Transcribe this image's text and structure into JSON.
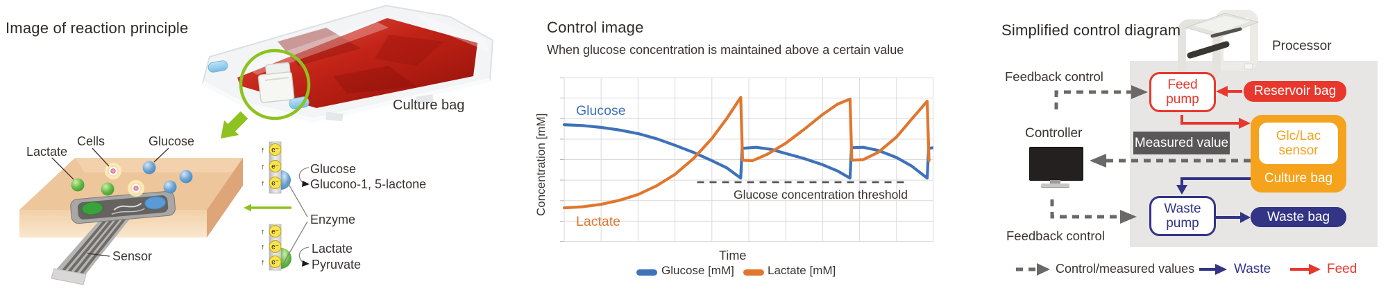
{
  "colors": {
    "feed_red": "#e8382d",
    "waste_navy": "#333486",
    "sensor_orange": "#f5a21d",
    "measured_gray": "#595757",
    "panel_gray": "#e7e6e4",
    "accent_green": "#8ec21f",
    "chart_blue": "#3e72b9",
    "chart_orange": "#e0772f",
    "text_dark": "#3a3331"
  },
  "panel1": {
    "title": "Image of reaction principle",
    "culture_bag_label": "Culture bag",
    "labels": {
      "lactate": "Lactate",
      "cells": "Cells",
      "glucose": "Glucose",
      "sensor": "Sensor"
    },
    "enzyme": {
      "electron": "e⁻",
      "up_arrow": "↑",
      "glucose_substrate": "Glucose",
      "glucose_product": "Glucono-1, 5-lactone",
      "enzyme_label": "Enzyme",
      "lactate_substrate": "Lactate",
      "lactate_product": "Pyruvate"
    }
  },
  "panel2": {
    "title": "Control image",
    "subtitle": "When glucose concentration is maintained above a certain value",
    "ylabel": "Concentration [mM]",
    "xlabel": "Time",
    "glucose_curve_label": "Glucose",
    "lactate_curve_label": "Lactate",
    "threshold_label": "Glucose concentration threshold",
    "legend": [
      {
        "label": "Glucose [mM]",
        "color": "#3e72b9"
      },
      {
        "label": "Lactate [mM]",
        "color": "#e0772f"
      }
    ]
  },
  "chart_data": {
    "type": "line",
    "title": "Control image",
    "xlabel": "Time",
    "ylabel": "Concentration [mM]",
    "xlim": [
      0,
      10
    ],
    "ylim": [
      0,
      8
    ],
    "grid": true,
    "tick_labels": "none (conceptual sketch, unlabeled axes)",
    "legend_position": "bottom",
    "threshold": {
      "label": "Glucose concentration threshold",
      "value": 2.9,
      "x_start": 3.6,
      "x_end": 9.2,
      "style": "dashed"
    },
    "series": [
      {
        "name": "Glucose [mM]",
        "color": "#3e72b9",
        "points": [
          [
            0,
            5.7
          ],
          [
            0.5,
            5.66
          ],
          [
            1,
            5.57
          ],
          [
            1.5,
            5.44
          ],
          [
            2,
            5.27
          ],
          [
            2.5,
            5.02
          ],
          [
            3,
            4.7
          ],
          [
            3.5,
            4.35
          ],
          [
            4,
            3.95
          ],
          [
            4.4,
            3.6
          ],
          [
            4.78,
            3.1
          ],
          [
            4.82,
            4.55
          ],
          [
            5.2,
            4.6
          ],
          [
            5.6,
            4.5
          ],
          [
            6,
            4.3
          ],
          [
            6.5,
            4.05
          ],
          [
            7,
            3.75
          ],
          [
            7.4,
            3.45
          ],
          [
            7.74,
            3.1
          ],
          [
            7.78,
            4.58
          ],
          [
            8.1,
            4.6
          ],
          [
            8.5,
            4.45
          ],
          [
            9,
            4.1
          ],
          [
            9.4,
            3.7
          ],
          [
            9.83,
            3.1
          ],
          [
            9.87,
            4.55
          ],
          [
            10,
            4.58
          ]
        ]
      },
      {
        "name": "Lactate [mM]",
        "color": "#e0772f",
        "points": [
          [
            0,
            1.65
          ],
          [
            0.5,
            1.7
          ],
          [
            1,
            1.82
          ],
          [
            1.5,
            2.02
          ],
          [
            2,
            2.3
          ],
          [
            2.5,
            2.72
          ],
          [
            3,
            3.28
          ],
          [
            3.5,
            4.05
          ],
          [
            4,
            5.03
          ],
          [
            4.4,
            6.0
          ],
          [
            4.78,
            7.03
          ],
          [
            4.83,
            3.97
          ],
          [
            5.1,
            3.95
          ],
          [
            5.5,
            4.26
          ],
          [
            6,
            4.8
          ],
          [
            6.5,
            5.48
          ],
          [
            7,
            6.2
          ],
          [
            7.4,
            6.7
          ],
          [
            7.74,
            6.95
          ],
          [
            7.79,
            3.97
          ],
          [
            8.1,
            4.0
          ],
          [
            8.5,
            4.35
          ],
          [
            9,
            5.1
          ],
          [
            9.4,
            5.95
          ],
          [
            9.83,
            6.85
          ],
          [
            9.88,
            3.95
          ]
        ]
      }
    ]
  },
  "panel3": {
    "title": "Simplified control diagram",
    "processor": "Processor",
    "controller": "Controller",
    "feedback_top": "Feedback control",
    "feedback_bottom": "Feedback control",
    "feed_pump": "Feed\npump",
    "reservoir_bag": "Reservoir bag",
    "measured_value": "Measured value",
    "glc_lac_sensor": "Glc/Lac\nsensor",
    "culture_bag": "Culture bag",
    "waste_pump": "Waste\npump",
    "waste_bag": "Waste bag",
    "legend": {
      "control": "Control/measured values",
      "waste": "Waste",
      "feed": "Feed"
    }
  }
}
